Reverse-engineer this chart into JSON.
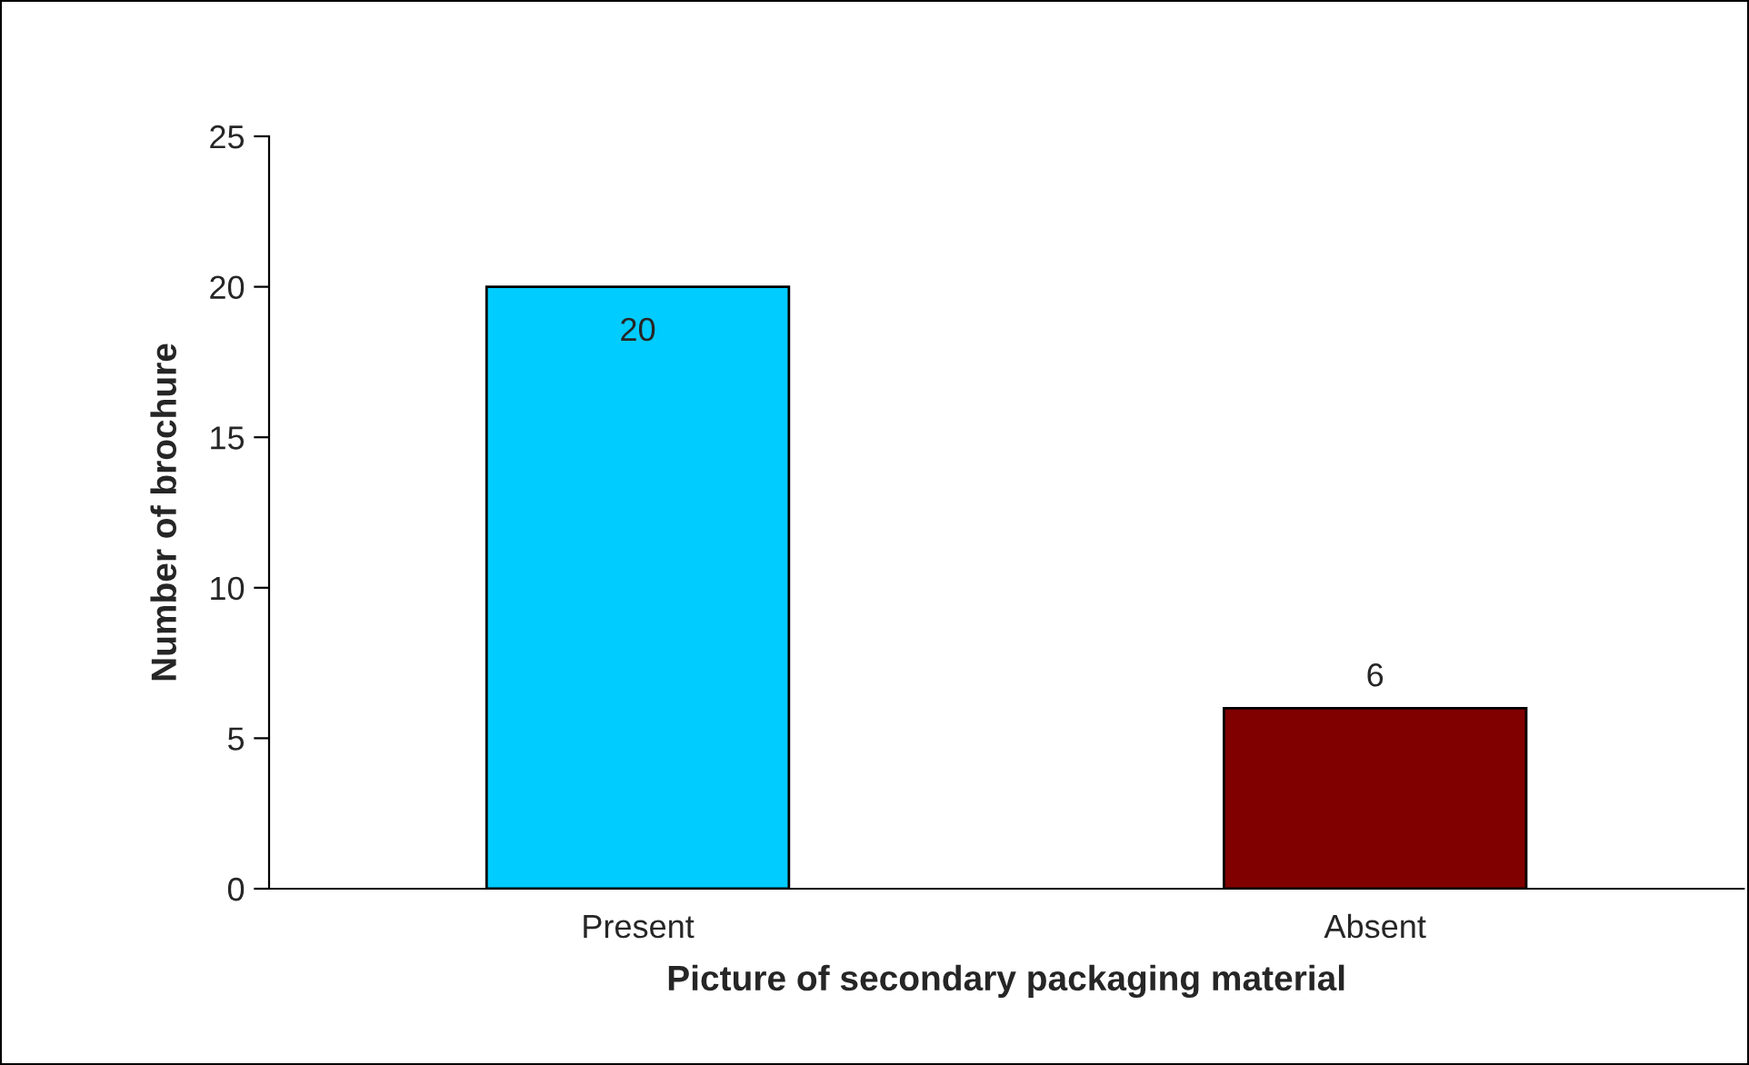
{
  "chart_data": {
    "type": "bar",
    "xlabel": "Picture of secondary packaging material",
    "ylabel": "Number of brochure",
    "categories": [
      "Present",
      "Absent"
    ],
    "values": [
      20,
      6
    ],
    "colors": [
      "#00ccff",
      "#800000"
    ],
    "ylim": [
      0,
      25
    ],
    "yticks": [
      0,
      5,
      10,
      15,
      20,
      25
    ],
    "grid": false,
    "data_labels": true
  }
}
